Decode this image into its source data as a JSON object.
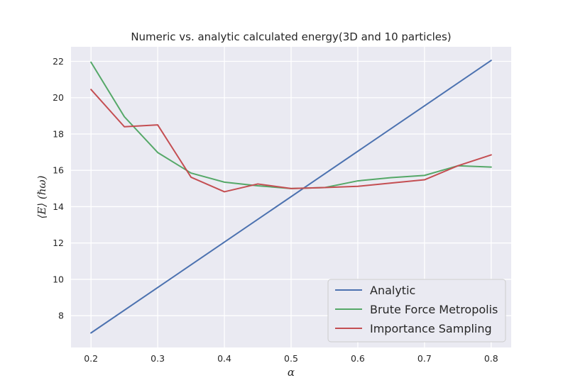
{
  "chart_data": {
    "type": "line",
    "title": "Numeric vs. analytic calculated energy(3D and 10 particles)",
    "xlabel": "α",
    "ylabel": "⟨E⟩ (ℏω)",
    "xlim": [
      0.17,
      0.83
    ],
    "ylim": [
      6.25,
      22.8
    ],
    "xticks": [
      0.2,
      0.3,
      0.4,
      0.5,
      0.6,
      0.7,
      0.8
    ],
    "xtick_labels": [
      "0.2",
      "0.3",
      "0.4",
      "0.5",
      "0.6",
      "0.7",
      "0.8"
    ],
    "yticks": [
      8,
      10,
      12,
      14,
      16,
      18,
      20,
      22
    ],
    "ytick_labels": [
      "8",
      "10",
      "12",
      "14",
      "16",
      "18",
      "20",
      "22"
    ],
    "grid": true,
    "legend_position": "lower-right",
    "series": [
      {
        "name": "Analytic",
        "color": "#4c72b0",
        "x": [
          0.2,
          0.8
        ],
        "y": [
          7.05,
          22.05
        ]
      },
      {
        "name": "Brute Force Metropolis",
        "color": "#55a868",
        "x": [
          0.2,
          0.25,
          0.3,
          0.35,
          0.4,
          0.45,
          0.5,
          0.55,
          0.6,
          0.65,
          0.7,
          0.75,
          0.8
        ],
        "y": [
          21.95,
          18.95,
          16.98,
          15.85,
          15.35,
          15.15,
          15.0,
          15.05,
          15.42,
          15.6,
          15.72,
          16.25,
          16.18
        ]
      },
      {
        "name": "Importance Sampling",
        "color": "#c44e52",
        "x": [
          0.2,
          0.25,
          0.3,
          0.35,
          0.4,
          0.45,
          0.5,
          0.55,
          0.6,
          0.65,
          0.7,
          0.75,
          0.8
        ],
        "y": [
          20.45,
          18.4,
          18.5,
          15.62,
          14.82,
          15.25,
          15.0,
          15.05,
          15.12,
          15.3,
          15.48,
          16.25,
          16.85
        ]
      }
    ]
  }
}
